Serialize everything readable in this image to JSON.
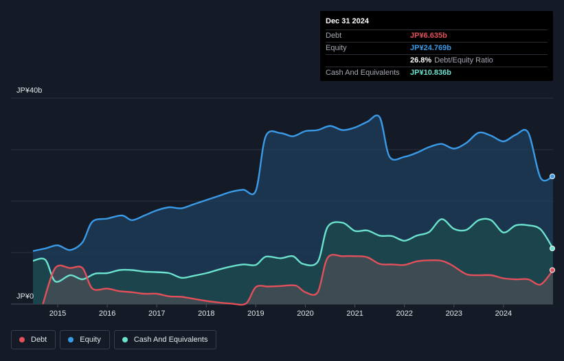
{
  "tooltip": {
    "date": "Dec 31 2024",
    "rows": [
      {
        "label": "Debt",
        "value": "JP¥6.635b",
        "color": "#e4505a"
      },
      {
        "label": "Equity",
        "value": "JP¥24.769b",
        "color": "#3a9be8"
      },
      {
        "label": "",
        "value": "26.8%",
        "suffix": "Debt/Equity Ratio",
        "color": "#ffffff"
      },
      {
        "label": "Cash And Equivalents",
        "value": "JP¥10.836b",
        "color": "#6be3cf"
      }
    ]
  },
  "legend": [
    {
      "label": "Debt",
      "color": "#e4505a"
    },
    {
      "label": "Equity",
      "color": "#3a9be8"
    },
    {
      "label": "Cash And Equivalents",
      "color": "#6be3cf"
    }
  ],
  "chart_data": {
    "type": "area",
    "y_top_label": "JP¥40b",
    "y_bottom_label": "JP¥0",
    "ylim": [
      0,
      40
    ],
    "xlim": [
      2014.5,
      2025.0
    ],
    "x_ticks": [
      2015,
      2016,
      2017,
      2018,
      2019,
      2020,
      2021,
      2022,
      2023,
      2024
    ],
    "x_tick_labels": [
      "2015",
      "2016",
      "2017",
      "2018",
      "2019",
      "2020",
      "2021",
      "2022",
      "2023",
      "2024"
    ],
    "grid": true,
    "series": [
      {
        "name": "Equity",
        "color": "#3a9be8",
        "fill": "#1f3f5e",
        "points": [
          [
            2014.5,
            10.3
          ],
          [
            2014.75,
            10.8
          ],
          [
            2015.0,
            11.4
          ],
          [
            2015.25,
            10.5
          ],
          [
            2015.5,
            12.0
          ],
          [
            2015.7,
            16.0
          ],
          [
            2016.0,
            16.6
          ],
          [
            2016.3,
            17.2
          ],
          [
            2016.5,
            16.3
          ],
          [
            2016.75,
            17.2
          ],
          [
            2017.0,
            18.2
          ],
          [
            2017.25,
            18.8
          ],
          [
            2017.5,
            18.6
          ],
          [
            2017.75,
            19.4
          ],
          [
            2018.0,
            20.2
          ],
          [
            2018.25,
            21.0
          ],
          [
            2018.5,
            21.8
          ],
          [
            2018.75,
            22.2
          ],
          [
            2019.0,
            22.0
          ],
          [
            2019.2,
            32.6
          ],
          [
            2019.5,
            33.2
          ],
          [
            2019.75,
            32.6
          ],
          [
            2020.0,
            33.6
          ],
          [
            2020.25,
            33.8
          ],
          [
            2020.5,
            34.6
          ],
          [
            2020.75,
            33.8
          ],
          [
            2021.0,
            34.3
          ],
          [
            2021.25,
            35.4
          ],
          [
            2021.5,
            36.3
          ],
          [
            2021.7,
            28.6
          ],
          [
            2022.0,
            28.6
          ],
          [
            2022.25,
            29.4
          ],
          [
            2022.5,
            30.5
          ],
          [
            2022.75,
            31.1
          ],
          [
            2023.0,
            30.2
          ],
          [
            2023.25,
            31.3
          ],
          [
            2023.5,
            33.3
          ],
          [
            2023.75,
            32.7
          ],
          [
            2024.0,
            31.6
          ],
          [
            2024.25,
            32.9
          ],
          [
            2024.5,
            33.3
          ],
          [
            2024.75,
            24.5
          ],
          [
            2025.0,
            24.8
          ]
        ]
      },
      {
        "name": "Cash And Equivalents",
        "color": "#6be3cf",
        "fill": "#1b4a4b",
        "points": [
          [
            2014.5,
            8.4
          ],
          [
            2014.75,
            8.6
          ],
          [
            2014.95,
            4.4
          ],
          [
            2015.25,
            5.6
          ],
          [
            2015.5,
            4.8
          ],
          [
            2015.75,
            5.9
          ],
          [
            2016.0,
            6.0
          ],
          [
            2016.25,
            6.6
          ],
          [
            2016.5,
            6.6
          ],
          [
            2016.75,
            6.3
          ],
          [
            2017.0,
            6.2
          ],
          [
            2017.25,
            6.0
          ],
          [
            2017.5,
            5.1
          ],
          [
            2017.75,
            5.5
          ],
          [
            2018.0,
            6.0
          ],
          [
            2018.25,
            6.7
          ],
          [
            2018.5,
            7.3
          ],
          [
            2018.75,
            7.7
          ],
          [
            2019.0,
            7.6
          ],
          [
            2019.2,
            9.2
          ],
          [
            2019.5,
            8.9
          ],
          [
            2019.75,
            9.3
          ],
          [
            2019.95,
            7.8
          ],
          [
            2020.25,
            8.2
          ],
          [
            2020.45,
            15.0
          ],
          [
            2020.75,
            15.8
          ],
          [
            2021.0,
            14.2
          ],
          [
            2021.25,
            14.3
          ],
          [
            2021.5,
            13.3
          ],
          [
            2021.75,
            13.2
          ],
          [
            2022.0,
            12.3
          ],
          [
            2022.25,
            13.3
          ],
          [
            2022.5,
            14.0
          ],
          [
            2022.75,
            16.5
          ],
          [
            2023.0,
            14.6
          ],
          [
            2023.25,
            14.4
          ],
          [
            2023.5,
            16.3
          ],
          [
            2023.75,
            16.3
          ],
          [
            2024.0,
            13.9
          ],
          [
            2024.25,
            15.3
          ],
          [
            2024.5,
            15.3
          ],
          [
            2024.75,
            14.5
          ],
          [
            2025.0,
            10.8
          ]
        ]
      },
      {
        "name": "Debt",
        "color": "#e4505a",
        "fill": "#4a4d56",
        "points": [
          [
            2014.7,
            0.0
          ],
          [
            2014.95,
            7.0
          ],
          [
            2015.25,
            7.0
          ],
          [
            2015.5,
            7.0
          ],
          [
            2015.7,
            3.0
          ],
          [
            2016.0,
            3.0
          ],
          [
            2016.25,
            2.5
          ],
          [
            2016.5,
            2.3
          ],
          [
            2016.75,
            2.0
          ],
          [
            2017.0,
            2.0
          ],
          [
            2017.25,
            1.5
          ],
          [
            2017.5,
            1.4
          ],
          [
            2017.75,
            1.0
          ],
          [
            2018.0,
            0.6
          ],
          [
            2018.25,
            0.3
          ],
          [
            2018.5,
            0.1
          ],
          [
            2018.8,
            0.1
          ],
          [
            2019.0,
            3.3
          ],
          [
            2019.25,
            3.4
          ],
          [
            2019.5,
            3.5
          ],
          [
            2019.8,
            3.6
          ],
          [
            2020.0,
            2.3
          ],
          [
            2020.25,
            2.3
          ],
          [
            2020.45,
            9.0
          ],
          [
            2020.75,
            9.3
          ],
          [
            2021.0,
            9.3
          ],
          [
            2021.25,
            9.1
          ],
          [
            2021.5,
            7.8
          ],
          [
            2021.75,
            7.7
          ],
          [
            2022.0,
            7.6
          ],
          [
            2022.25,
            8.3
          ],
          [
            2022.5,
            8.5
          ],
          [
            2022.75,
            8.4
          ],
          [
            2022.95,
            7.6
          ],
          [
            2023.25,
            5.8
          ],
          [
            2023.5,
            5.6
          ],
          [
            2023.75,
            5.6
          ],
          [
            2024.0,
            5.0
          ],
          [
            2024.25,
            4.8
          ],
          [
            2024.5,
            4.8
          ],
          [
            2024.75,
            3.8
          ],
          [
            2025.0,
            6.6
          ]
        ]
      }
    ]
  }
}
